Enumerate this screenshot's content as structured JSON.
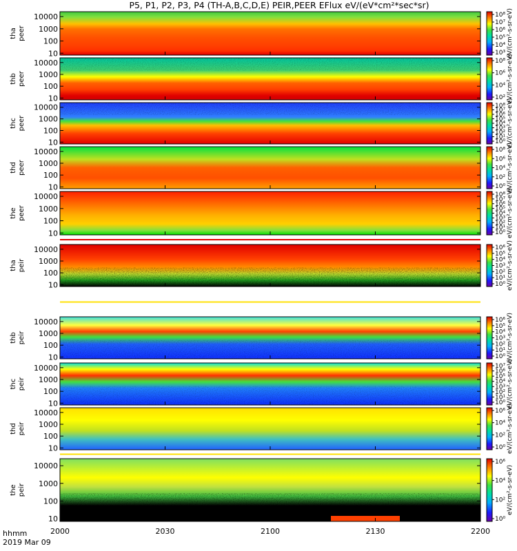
{
  "title": "P5, P1, P2, P3, P4 (TH-A,B,C,D,E) PEIR,PEER EFlux eV/(eV*cm²*sec*sr)",
  "footer": {
    "time_label": "hhmm",
    "date_label": "2019 Mar 09"
  },
  "chart_data": {
    "type": "heatmap",
    "title": "P5, P1, P2, P3, P4 (TH-A,B,C,D,E) PEIR,PEER EFlux eV/(eV*cm²*sec*sr)",
    "x_ticks": [
      "2000",
      "2030",
      "2100",
      "2130",
      "2200"
    ],
    "xlim": [
      "2000",
      "2200"
    ],
    "y_scale": "log",
    "colorbar_scale": "log",
    "colormap": "rainbow (purple-blue-cyan-green-yellow-red), black below range",
    "colorbar_title": "eV/(cm²-s-sr-eV)",
    "panels": [
      {
        "probe": "tha",
        "species": "peer",
        "y_ticks": [
          "10000",
          "1000",
          "100",
          "10"
        ],
        "ylim": [
          7,
          25000
        ],
        "cb_ticks": [
          "10⁸",
          "10⁷",
          "10⁶",
          "10⁵",
          "10⁴",
          "10³"
        ],
        "cb_label": "eV/(cm²-s-sr-eV)",
        "cb_label_full": true
      },
      {
        "probe": "thb",
        "species": "peer",
        "y_ticks": [
          "10000",
          "1000",
          "100",
          "10"
        ],
        "ylim": [
          7,
          25000
        ],
        "cb_ticks": [
          "10⁸",
          "10⁶",
          "10⁴",
          "10²"
        ],
        "cb_label": "eV/(cm²-s-sr-eV)"
      },
      {
        "probe": "thc",
        "species": "peer",
        "y_ticks": [
          "10000",
          "1000",
          "100",
          "10"
        ],
        "ylim": [
          7,
          25000
        ],
        "cb_ticks": [
          "10⁸",
          "10⁷",
          "10⁶",
          "10⁵",
          "10⁴",
          "10³",
          "10²",
          "10¹",
          "10⁰"
        ],
        "cb_label": "eV/(cm²-s-sr-eV)"
      },
      {
        "probe": "thd",
        "species": "peer",
        "y_ticks": [
          "10000",
          "1000",
          "100",
          "10"
        ],
        "ylim": [
          7,
          25000
        ],
        "cb_ticks": [
          "10⁸",
          "10⁶",
          "10⁴",
          "10²",
          "10⁰"
        ],
        "cb_label": "eV/(cm²-s-sr-eV)"
      },
      {
        "probe": "the",
        "species": "peer",
        "y_ticks": [
          "10000",
          "1000",
          "100",
          "10"
        ],
        "ylim": [
          7,
          25000
        ],
        "cb_ticks": [
          "10⁸",
          "10⁷",
          "10⁶",
          "10⁵",
          "10⁴",
          "10³",
          "10²",
          "10¹",
          "10⁰"
        ],
        "cb_label": "eV/(cm²-s-sr-eV)"
      },
      {
        "probe": "tha",
        "species": "peir",
        "y_ticks": [
          "10000",
          "1000",
          "100",
          "10"
        ],
        "ylim": [
          7,
          25000
        ],
        "cb_ticks": [
          "10⁶",
          "10⁵",
          "10⁴",
          "10³",
          "10²",
          "10¹",
          "10⁰"
        ],
        "cb_label": "eV/(cm²-s-sr-eV)"
      },
      {
        "probe": "thb",
        "species": "peir",
        "y_ticks": [
          "10000",
          "1000",
          "100",
          "10"
        ],
        "ylim": [
          7,
          25000
        ],
        "cb_ticks": [
          "10⁶",
          "10⁵",
          "10⁴",
          "10³",
          "10²",
          "10¹",
          "10⁰"
        ],
        "cb_label": "eV/(cm²-s-sr-eV)"
      },
      {
        "probe": "thc",
        "species": "peir",
        "y_ticks": [
          "10000",
          "1000",
          "100",
          "10"
        ],
        "ylim": [
          7,
          25000
        ],
        "cb_ticks": [
          "10⁷",
          "10⁶",
          "10⁵",
          "10⁴",
          "10³",
          "10²",
          "10¹",
          "10⁰"
        ],
        "cb_label": "eV/(cm²-s-sr-eV)"
      },
      {
        "probe": "thd",
        "species": "peir",
        "y_ticks": [
          "10000",
          "1000",
          "100",
          "10"
        ],
        "ylim": [
          7,
          25000
        ],
        "cb_ticks": [
          "10⁶",
          "10⁴",
          "10²",
          "10⁰"
        ],
        "cb_label": "eV/(cm²-s-sr-eV)"
      },
      {
        "probe": "the",
        "species": "peir",
        "y_ticks": [
          "10000",
          "1000",
          "100",
          "10"
        ],
        "ylim": [
          7,
          25000
        ],
        "cb_ticks": [
          "10⁶",
          "10⁴",
          "10²",
          "10⁰"
        ],
        "cb_label": "eV/(cm²-s-sr-eV)"
      }
    ]
  }
}
